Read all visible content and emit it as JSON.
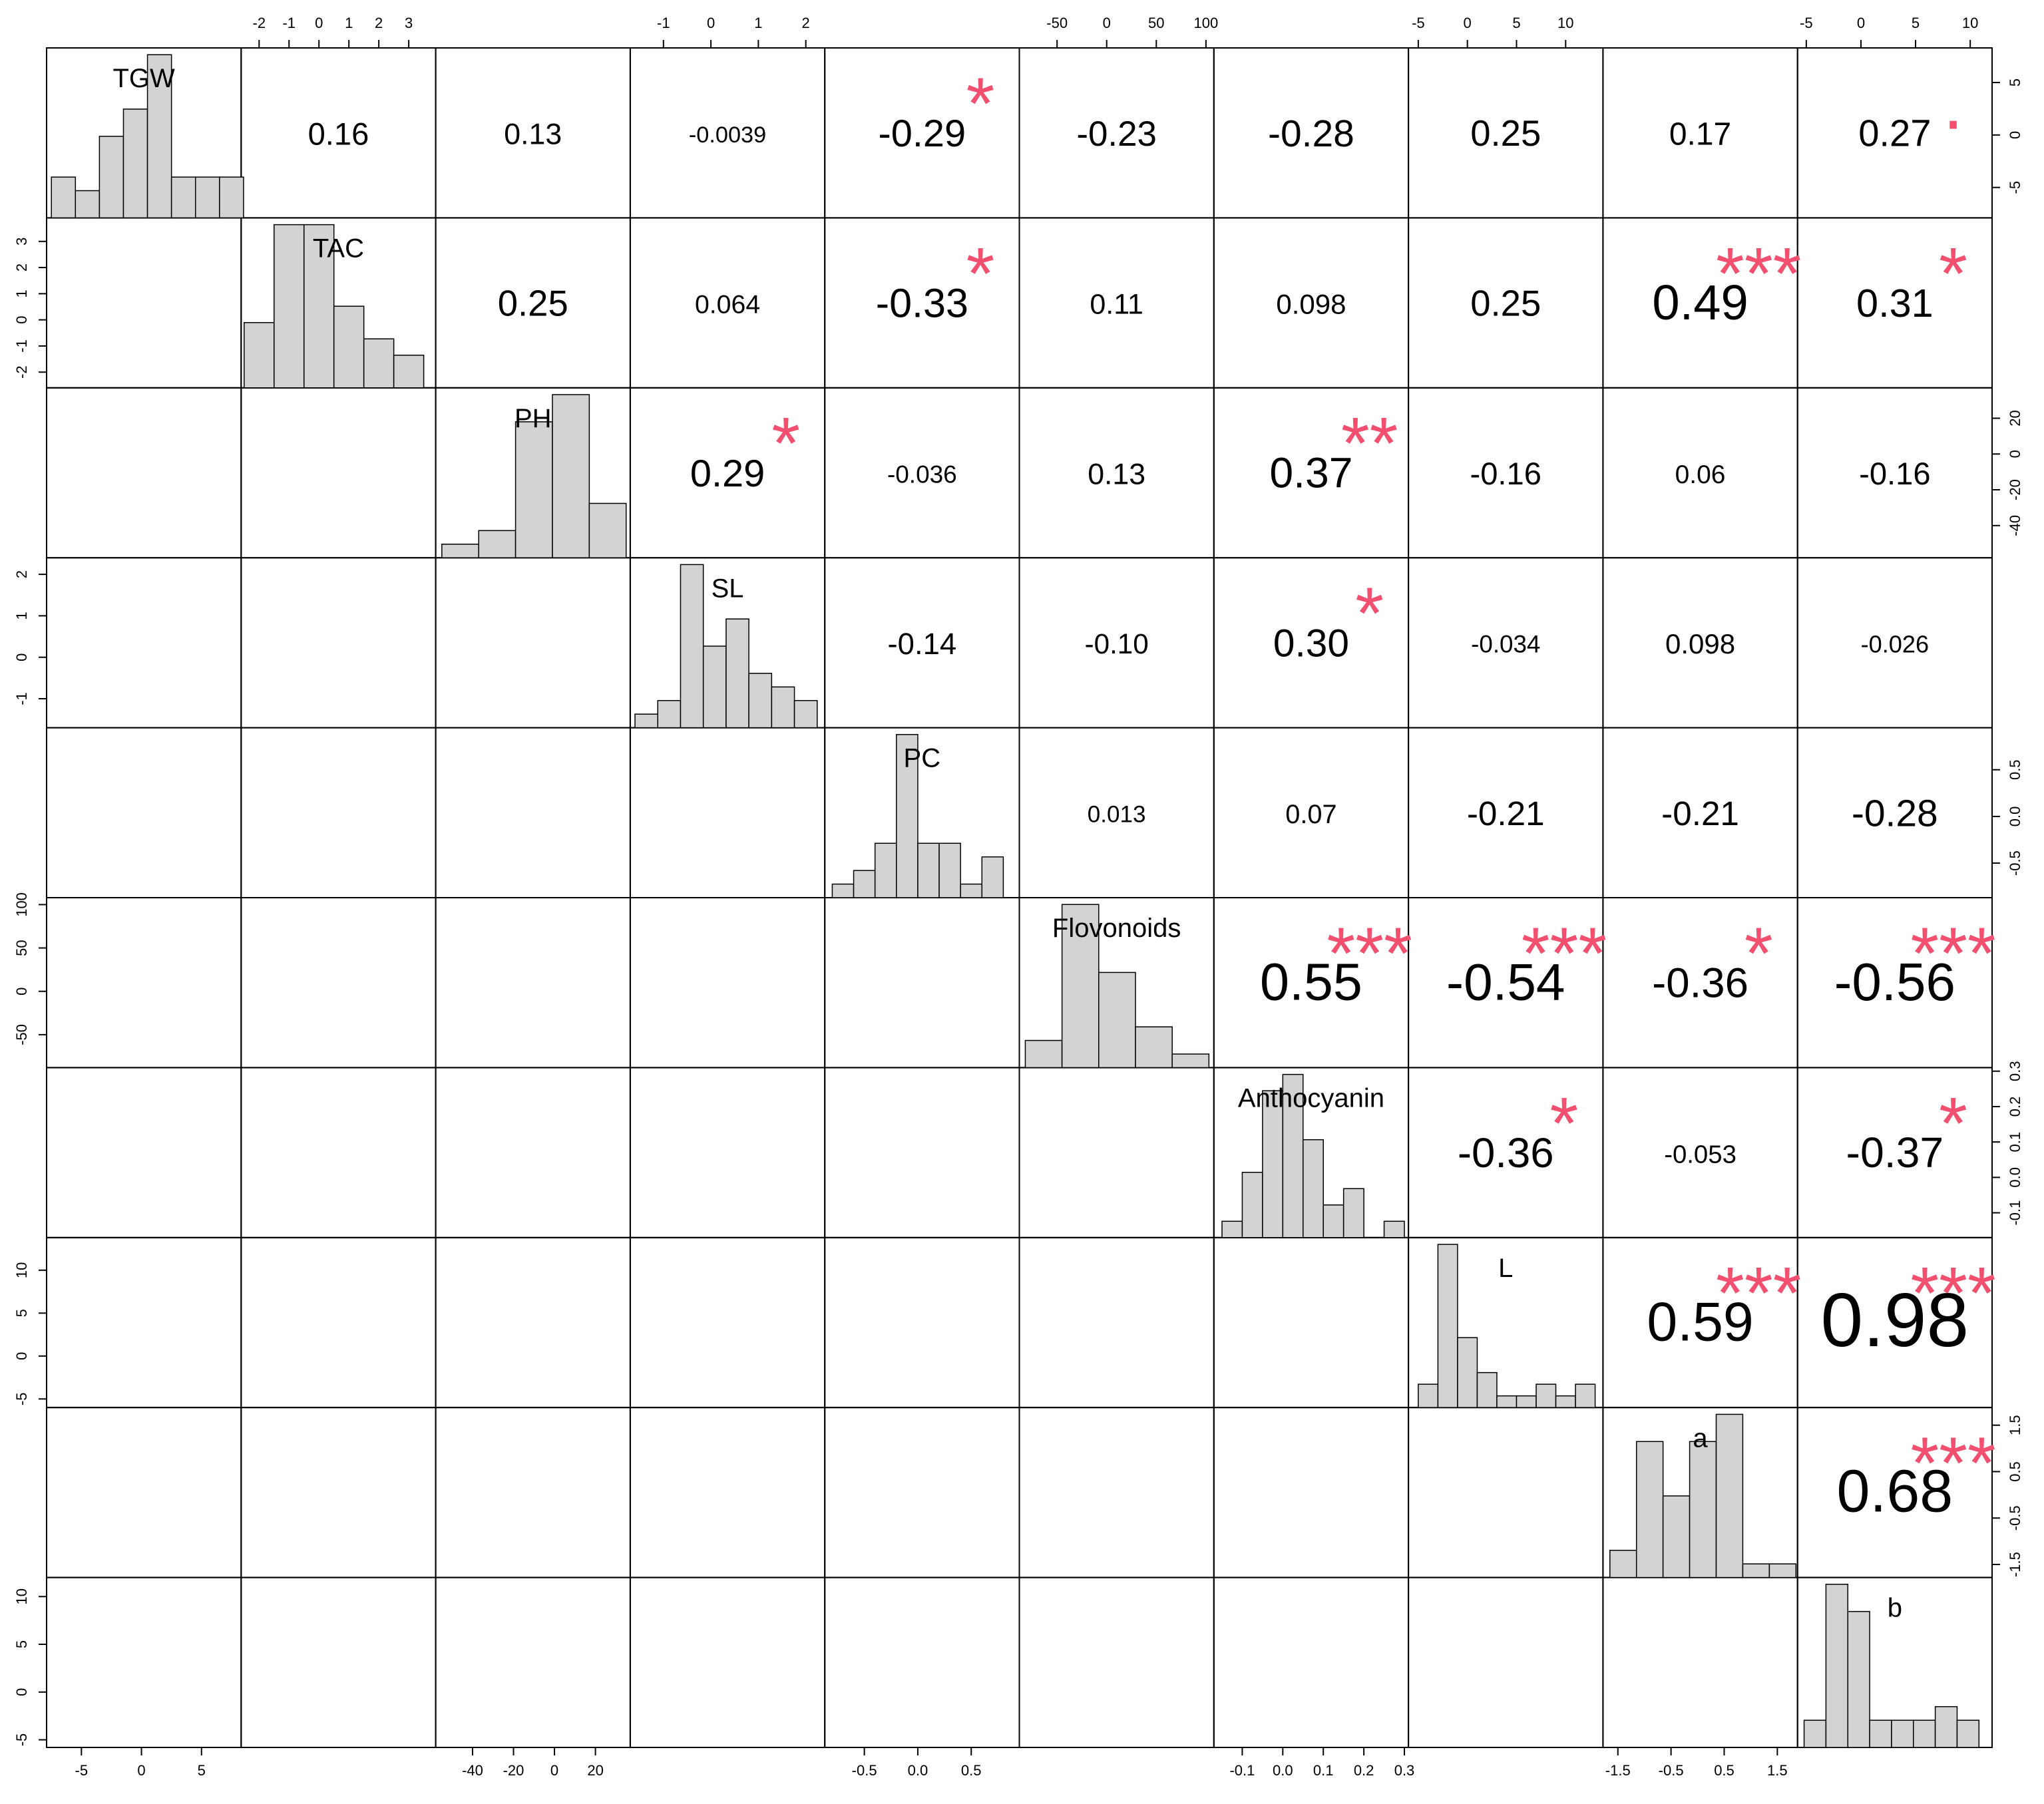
{
  "chart_data": {
    "type": "pairs",
    "hist_color": "#d3d3d3",
    "star_color": "#f2506e",
    "variables": [
      {
        "name": "TGW",
        "lim": [
          -7.9,
          8.3
        ],
        "ticks": [
          -5,
          0,
          5
        ],
        "bins": [
          -7.5,
          -5.5,
          -3.5,
          -1.5,
          0.5,
          2.5,
          4.5,
          6.5,
          8.5
        ],
        "counts": [
          3,
          2,
          6,
          8,
          12,
          3,
          3,
          3
        ]
      },
      {
        "name": "TAC",
        "lim": [
          -2.6,
          3.9
        ],
        "ticks": [
          -2,
          -1,
          0,
          1,
          2,
          3
        ],
        "bins": [
          -2.5,
          -1.5,
          -0.5,
          0.5,
          1.5,
          2.5,
          3.5
        ],
        "counts": [
          4,
          10,
          10,
          5,
          3,
          2
        ]
      },
      {
        "name": "PH",
        "lim": [
          -58,
          37
        ],
        "ticks": [
          -40,
          -20,
          0,
          20
        ],
        "bins": [
          -55,
          -37,
          -19,
          -1,
          17,
          35
        ],
        "counts": [
          1,
          2,
          10,
          12,
          4
        ]
      },
      {
        "name": "SL",
        "lim": [
          -1.7,
          2.4
        ],
        "ticks": [
          -1,
          0,
          1,
          2
        ],
        "bins": [
          -1.6,
          -1.12,
          -0.64,
          -0.16,
          0.32,
          0.8,
          1.28,
          1.76,
          2.24
        ],
        "counts": [
          1,
          2,
          12,
          6,
          8,
          4,
          3,
          2
        ]
      },
      {
        "name": "PC",
        "lim": [
          -0.87,
          0.95
        ],
        "ticks": [
          -0.5,
          {
            "value": 0,
            "label": "0.0"
          },
          0.5
        ],
        "bins": [
          -0.8,
          -0.6,
          -0.4,
          -0.2,
          0,
          0.2,
          0.4,
          0.6,
          0.8
        ],
        "counts": [
          1,
          2,
          4,
          12,
          4,
          4,
          1,
          3
        ]
      },
      {
        "name": "Flovonoids",
        "lim": [
          -88,
          108
        ],
        "ticks": [
          -50,
          0,
          50,
          100
        ],
        "bins": [
          -82,
          -45,
          -8,
          29,
          66,
          103
        ],
        "counts": [
          2,
          12,
          7,
          3,
          1
        ]
      },
      {
        "name": "Anthocyanin",
        "lim": [
          -0.17,
          0.31
        ],
        "ticks": [
          -0.1,
          {
            "value": 0,
            "label": "0.0"
          },
          0.1,
          0.2,
          0.3
        ],
        "bins": [
          -0.15,
          -0.1,
          -0.05,
          0,
          0.05,
          0.1,
          0.15,
          0.2,
          0.25,
          0.3
        ],
        "counts": [
          1,
          4,
          9,
          10,
          6,
          2,
          3,
          0,
          1
        ]
      },
      {
        "name": "L",
        "lim": [
          -6,
          13.8
        ],
        "ticks": [
          -5,
          0,
          5,
          10
        ],
        "bins": [
          -5,
          -3,
          -1,
          1,
          3,
          5,
          7,
          9,
          11,
          13
        ],
        "counts": [
          2,
          14,
          6,
          3,
          1,
          1,
          2,
          1,
          2
        ]
      },
      {
        "name": "a",
        "lim": [
          -1.78,
          1.88
        ],
        "ticks": [
          -1.5,
          -0.5,
          0.5,
          1.5
        ],
        "bins": [
          -1.65,
          -1.15,
          -0.65,
          -0.15,
          0.35,
          0.85,
          1.35,
          1.85
        ],
        "counts": [
          2,
          10,
          6,
          10,
          12,
          1,
          1
        ]
      },
      {
        "name": "b",
        "lim": [
          -5.8,
          12
        ],
        "ticks": [
          -5,
          0,
          5,
          10
        ],
        "bins": [
          -5.2,
          -3.2,
          -1.2,
          0.8,
          2.8,
          4.8,
          6.8,
          8.8,
          10.8
        ],
        "counts": [
          2,
          12,
          10,
          2,
          2,
          2,
          3,
          2
        ]
      }
    ],
    "correlations": [
      [
        0.16,
        0.13,
        -0.0039,
        -0.29,
        -0.23,
        -0.28,
        0.25,
        0.17,
        0.27
      ],
      [
        0.25,
        0.064,
        -0.33,
        0.11,
        0.098,
        0.25,
        0.49,
        0.31
      ],
      [
        0.29,
        -0.036,
        0.13,
        0.37,
        -0.16,
        0.06,
        -0.16
      ],
      [
        -0.14,
        -0.1,
        0.3,
        -0.034,
        0.098,
        -0.026
      ],
      [
        0.013,
        0.07,
        -0.21,
        -0.21,
        -0.28
      ],
      [
        0.55,
        -0.54,
        -0.36,
        -0.56
      ],
      [
        -0.36,
        -0.053,
        -0.37
      ],
      [
        0.59,
        0.98
      ],
      [
        0.68
      ]
    ],
    "value_labels": [
      [
        "0.16",
        "0.13",
        "-0.0039",
        "-0.29",
        "-0.23",
        "-0.28",
        "0.25",
        "0.17",
        "0.27"
      ],
      [
        "0.25",
        "0.064",
        "-0.33",
        "0.11",
        "0.098",
        "0.25",
        "0.49",
        "0.31"
      ],
      [
        "0.29",
        "-0.036",
        "0.13",
        "0.37",
        "-0.16",
        "0.06",
        "-0.16"
      ],
      [
        "-0.14",
        "-0.10",
        "0.30",
        "-0.034",
        "0.098",
        "-0.026"
      ],
      [
        "0.013",
        "0.07",
        "-0.21",
        "-0.21",
        "-0.28"
      ],
      [
        "0.55",
        "-0.54",
        "-0.36",
        "-0.56"
      ],
      [
        "-0.36",
        "-0.053",
        "-0.37"
      ],
      [
        "0.59",
        "0.98"
      ],
      [
        "0.68"
      ]
    ],
    "significance": [
      [
        null,
        null,
        null,
        "*",
        null,
        null,
        null,
        null,
        "."
      ],
      [
        null,
        null,
        "*",
        null,
        null,
        null,
        "***",
        "*"
      ],
      [
        "*",
        null,
        null,
        "**",
        null,
        null,
        null
      ],
      [
        null,
        null,
        "*",
        null,
        null,
        null
      ],
      [
        null,
        null,
        null,
        null,
        null
      ],
      [
        "***",
        "***",
        "*",
        "***"
      ],
      [
        "*",
        null,
        "*"
      ],
      [
        "***",
        "***"
      ],
      [
        "***"
      ]
    ]
  }
}
